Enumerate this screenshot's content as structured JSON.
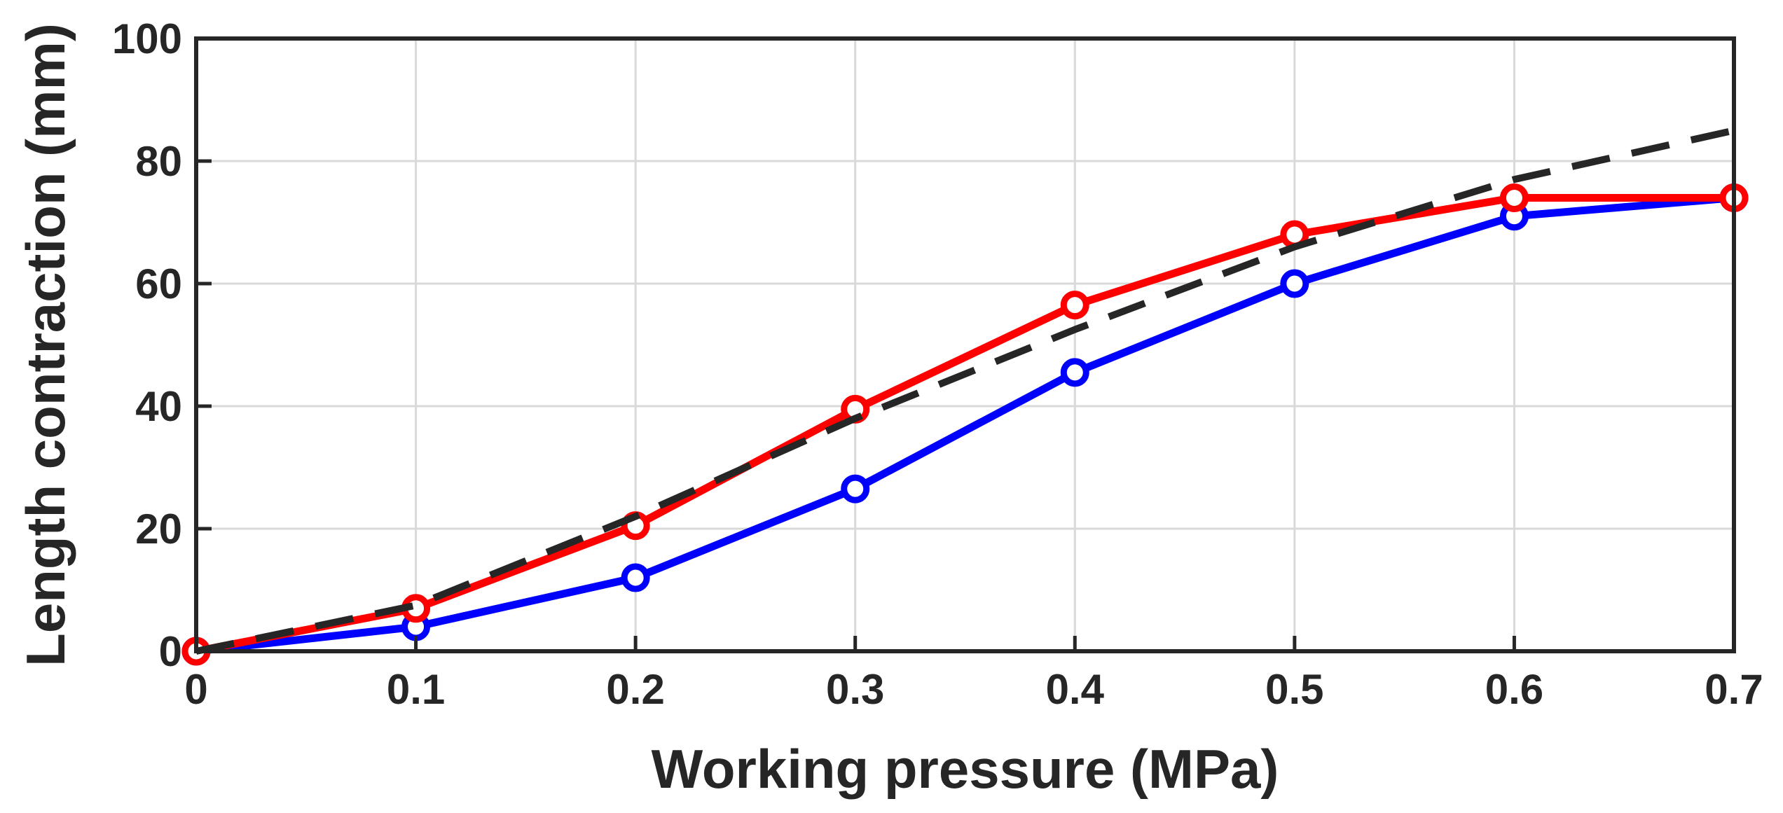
{
  "chart_data": {
    "type": "line",
    "title": "",
    "xlabel": "Working pressure (MPa)",
    "ylabel": "Length contraction (mm)",
    "xlim": [
      0,
      0.7
    ],
    "ylim": [
      0,
      100
    ],
    "xticks": [
      "0",
      "0.1",
      "0.2",
      "0.3",
      "0.4",
      "0.5",
      "0.6",
      "0.7"
    ],
    "yticks": [
      "0",
      "20",
      "40",
      "60",
      "80",
      "100"
    ],
    "grid": true,
    "legend": "none",
    "series": [
      {
        "color": "#0000ff",
        "style": "solid-circle-markers",
        "x": [
          0,
          0.1,
          0.2,
          0.3,
          0.4,
          0.5,
          0.6,
          0.7
        ],
        "y": [
          0,
          4,
          12,
          26.5,
          45.5,
          60,
          71,
          74
        ]
      },
      {
        "color": "#ff0000",
        "style": "solid-circle-markers",
        "x": [
          0,
          0.1,
          0.2,
          0.3,
          0.4,
          0.5,
          0.6,
          0.7
        ],
        "y": [
          0,
          7,
          20.5,
          39.5,
          56.5,
          68,
          74,
          74
        ]
      },
      {
        "color": "#262626",
        "style": "dashed",
        "x": [
          0,
          0.1,
          0.2,
          0.3,
          0.4,
          0.5,
          0.6,
          0.7
        ],
        "y": [
          0,
          7.5,
          22,
          38,
          52.5,
          66,
          77,
          85
        ]
      }
    ]
  }
}
